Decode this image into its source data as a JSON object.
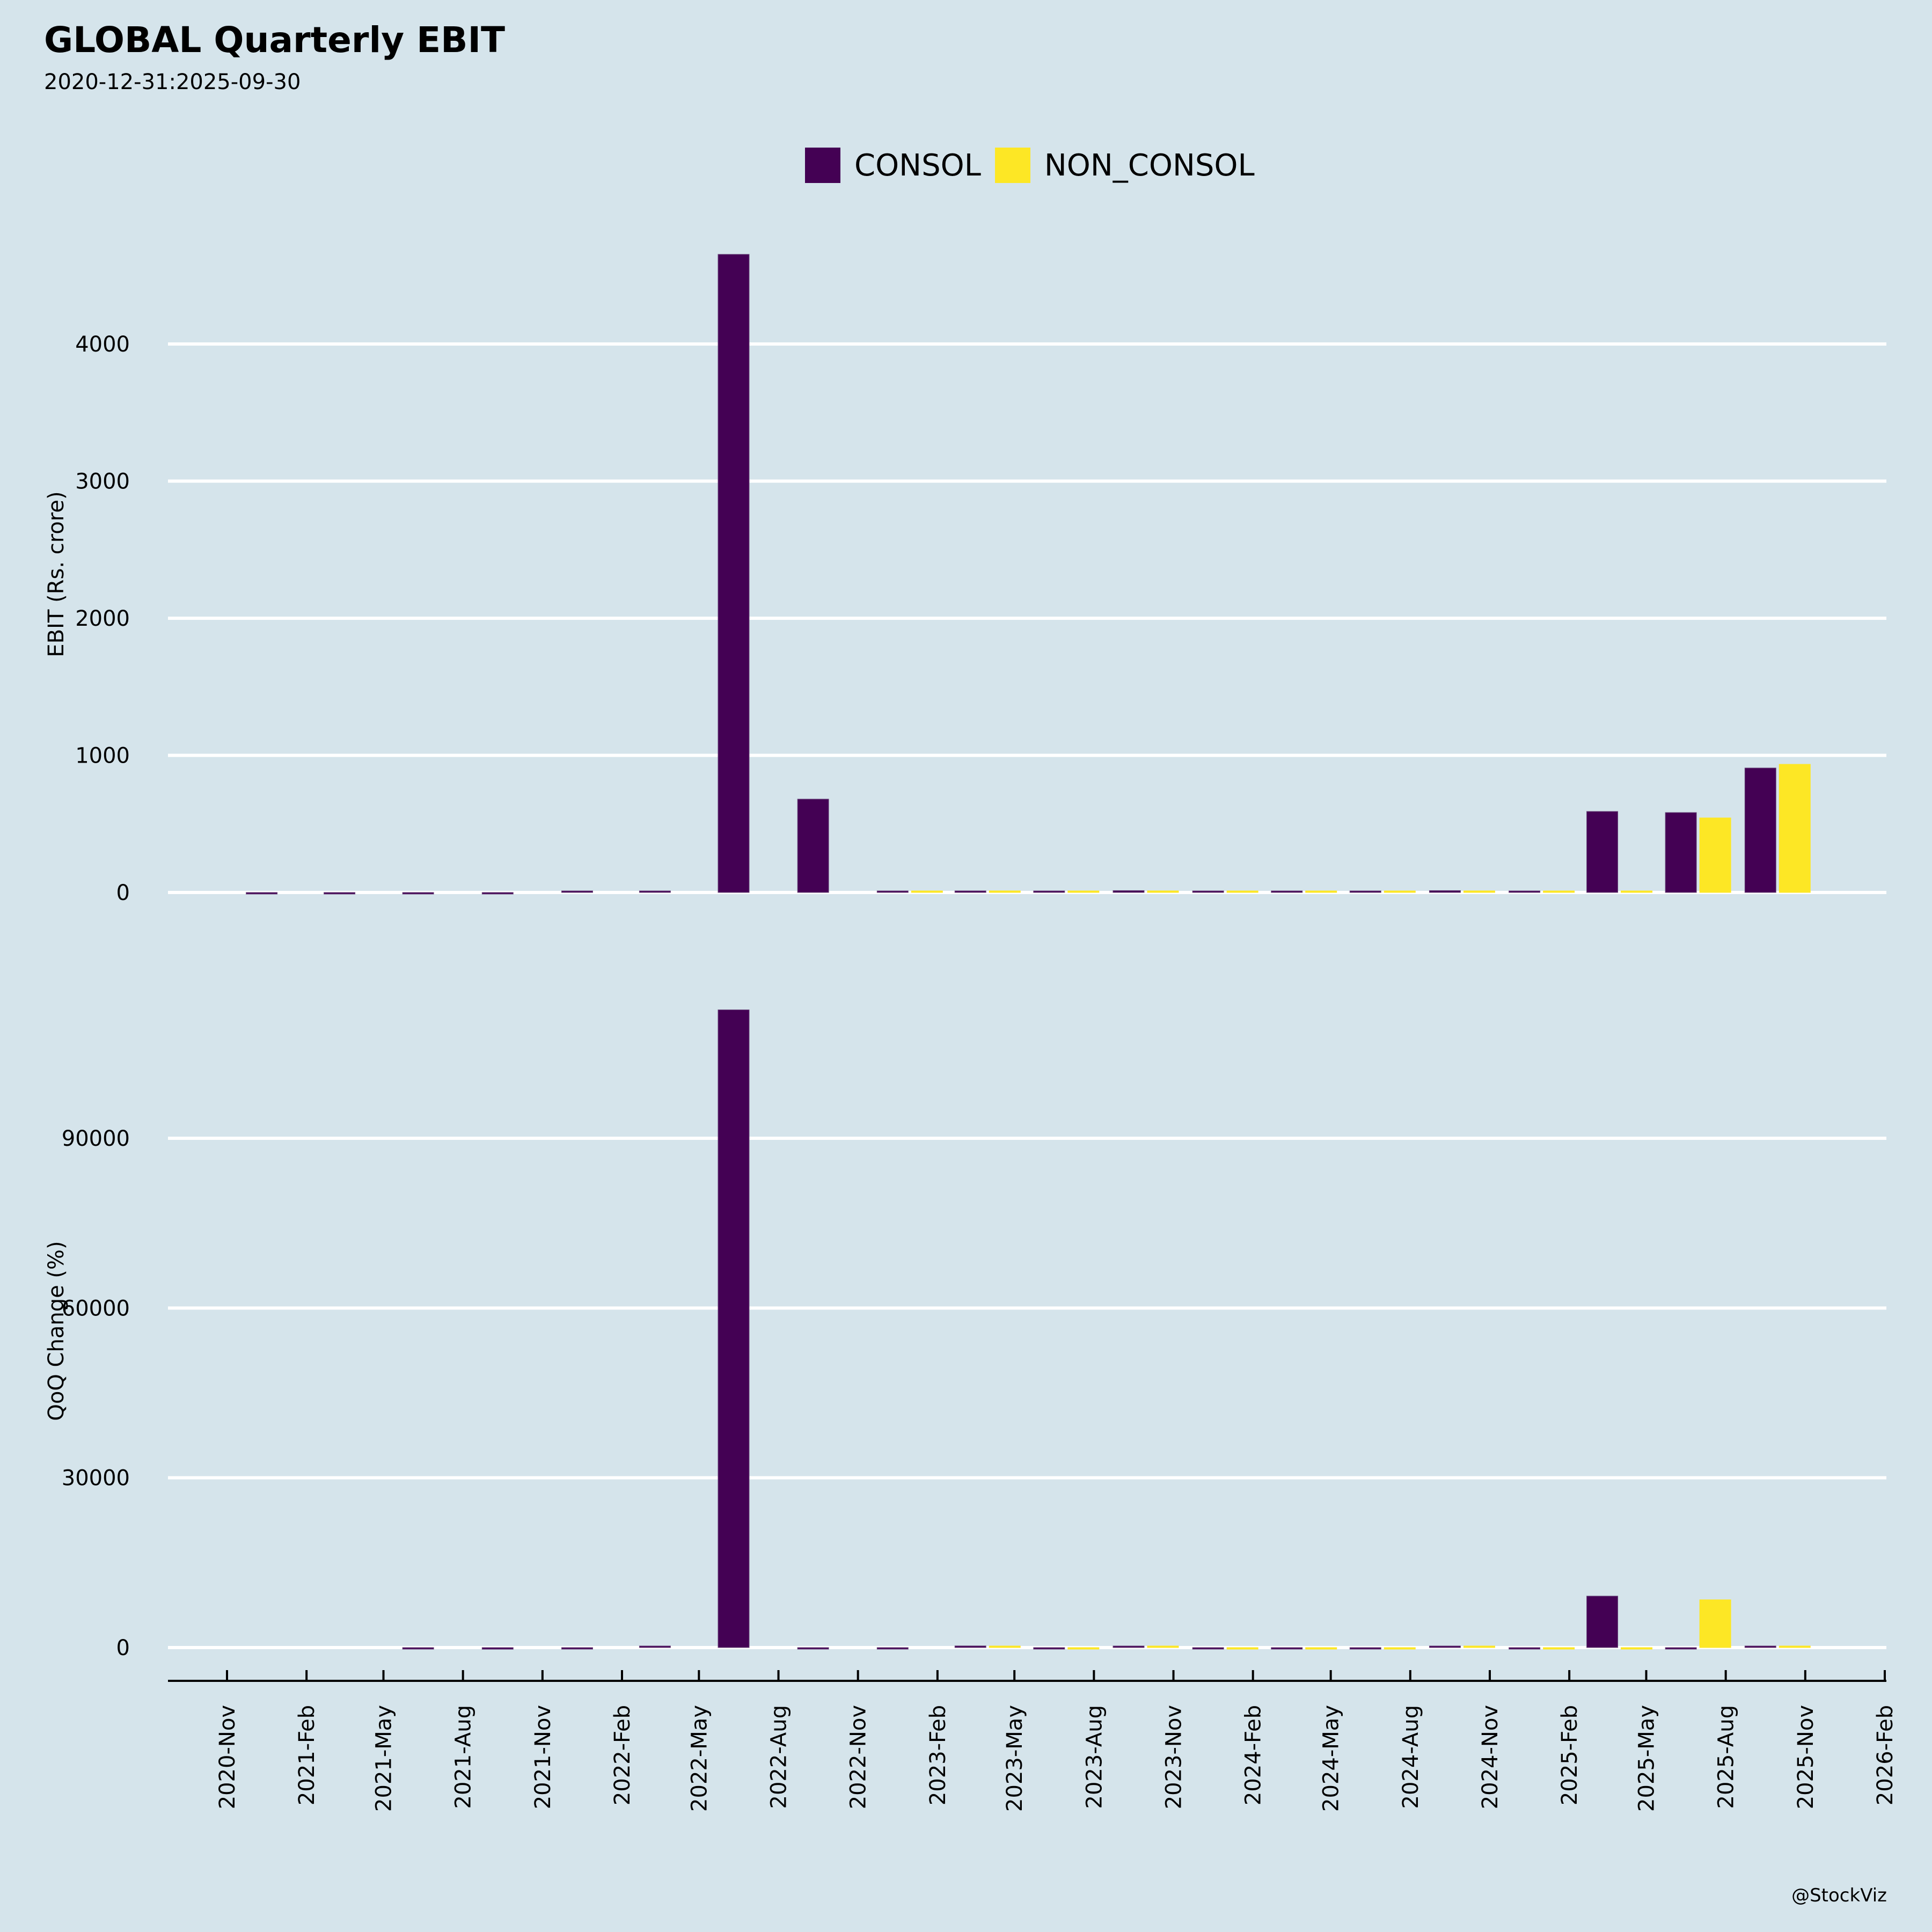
{
  "header": {
    "title": "GLOBAL Quarterly EBIT",
    "subtitle": "2020-12-31:2025-09-30"
  },
  "watermark": "@StockViz",
  "colors": {
    "background": "#d5e4eb",
    "consol": "#440154",
    "non_consol": "#fde725",
    "grid": "#ffffff"
  },
  "chart_data": [
    {
      "type": "bar",
      "title": "GLOBAL Quarterly EBIT",
      "subtitle": "2020-12-31:2025-09-30",
      "xlabel": "",
      "ylabel": "EBIT (Rs. crore)",
      "ylim": [
        -80,
        4900
      ],
      "yticks": [
        0,
        1000,
        2000,
        3000,
        4000
      ],
      "grid": true,
      "legend": "top-center",
      "categories": [
        "2020-12-31",
        "2021-03-31",
        "2021-06-30",
        "2021-09-30",
        "2021-12-31",
        "2022-03-31",
        "2022-06-30",
        "2022-09-30",
        "2022-12-31",
        "2023-03-31",
        "2023-06-30",
        "2023-09-30",
        "2023-12-31",
        "2024-03-31",
        "2024-06-30",
        "2024-09-30",
        "2024-12-31",
        "2025-03-31",
        "2025-06-30",
        "2025-09-30"
      ],
      "series": [
        {
          "name": "CONSOL",
          "values": [
            -2,
            -1,
            -2,
            -2,
            3,
            3,
            4654,
            681,
            3,
            12,
            7,
            14,
            10,
            6,
            6,
            14,
            4,
            591,
            583,
            908
          ]
        },
        {
          "name": "NON_CONSOL",
          "values": [
            null,
            null,
            null,
            null,
            null,
            null,
            null,
            null,
            4,
            12,
            6,
            12,
            8,
            6,
            6,
            12,
            6,
            4,
            544,
            935
          ]
        }
      ]
    },
    {
      "type": "bar",
      "xlabel": "",
      "ylabel": "QoQ Change (%)",
      "ylim": [
        -2500,
        117000
      ],
      "yticks": [
        0,
        30000,
        60000,
        90000
      ],
      "grid": true,
      "categories": [
        "2020-12-31",
        "2021-03-31",
        "2021-06-30",
        "2021-09-30",
        "2021-12-31",
        "2022-03-31",
        "2022-06-30",
        "2022-09-30",
        "2022-12-31",
        "2023-03-31",
        "2023-06-30",
        "2023-09-30",
        "2023-12-31",
        "2024-03-31",
        "2024-06-30",
        "2024-09-30",
        "2024-12-31",
        "2025-03-31",
        "2025-06-30",
        "2025-09-30"
      ],
      "series": [
        {
          "name": "CONSOL",
          "values": [
            null,
            null,
            -150,
            -300,
            -50,
            150,
            112700,
            -85,
            -90,
            300,
            -50,
            100,
            -30,
            -50,
            -20,
            130,
            -70,
            9100,
            -1,
            56
          ]
        },
        {
          "name": "NON_CONSOL",
          "values": [
            null,
            null,
            null,
            null,
            null,
            null,
            null,
            null,
            null,
            200,
            -50,
            100,
            -30,
            -50,
            -20,
            100,
            -50,
            -33,
            8450,
            72
          ]
        }
      ]
    }
  ],
  "x_axis": {
    "tick_labels": [
      "2020-Nov",
      "2021-Feb",
      "2021-May",
      "2021-Aug",
      "2021-Nov",
      "2022-Feb",
      "2022-May",
      "2022-Aug",
      "2022-Nov",
      "2023-Feb",
      "2023-May",
      "2023-Aug",
      "2023-Nov",
      "2024-Feb",
      "2024-May",
      "2024-Aug",
      "2024-Nov",
      "2025-Feb",
      "2025-May",
      "2025-Aug",
      "2025-Nov",
      "2026-Feb"
    ]
  }
}
